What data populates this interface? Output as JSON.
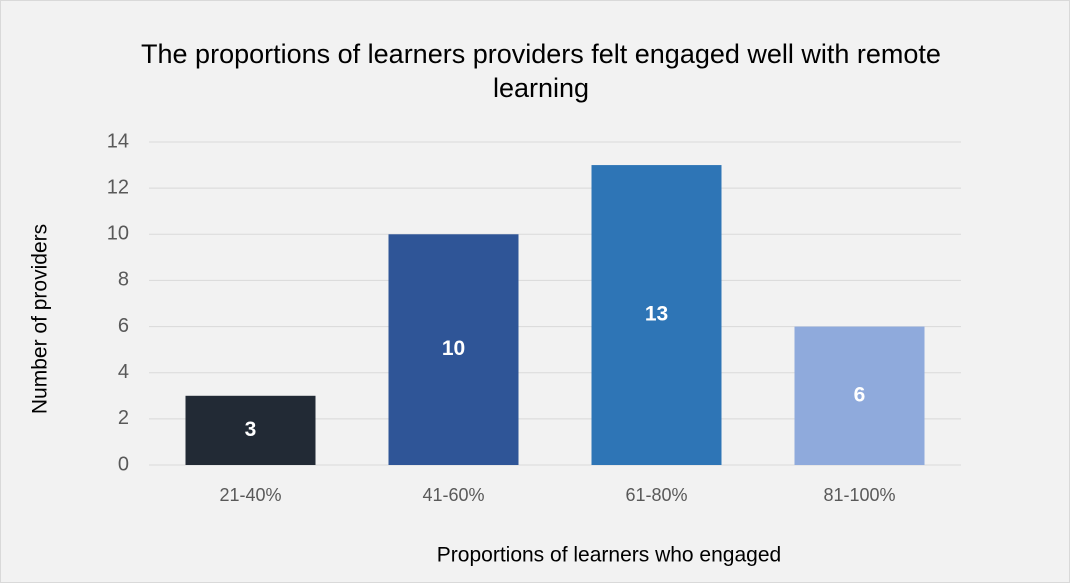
{
  "chart_data": {
    "type": "bar",
    "title": "The proportions of learners providers felt engaged well with remote learning",
    "x_label": "Proportions of learners who engaged",
    "y_label": "Number of providers",
    "categories": [
      "21-40%",
      "41-60%",
      "61-80%",
      "81-100%"
    ],
    "values": [
      3,
      10,
      13,
      6
    ],
    "colors": [
      "#222a35",
      "#2f5597",
      "#2e75b6",
      "#8faadc"
    ],
    "ylim": [
      0,
      14
    ],
    "yticks": [
      0,
      2,
      4,
      6,
      8,
      10,
      12,
      14
    ],
    "grid": true
  }
}
